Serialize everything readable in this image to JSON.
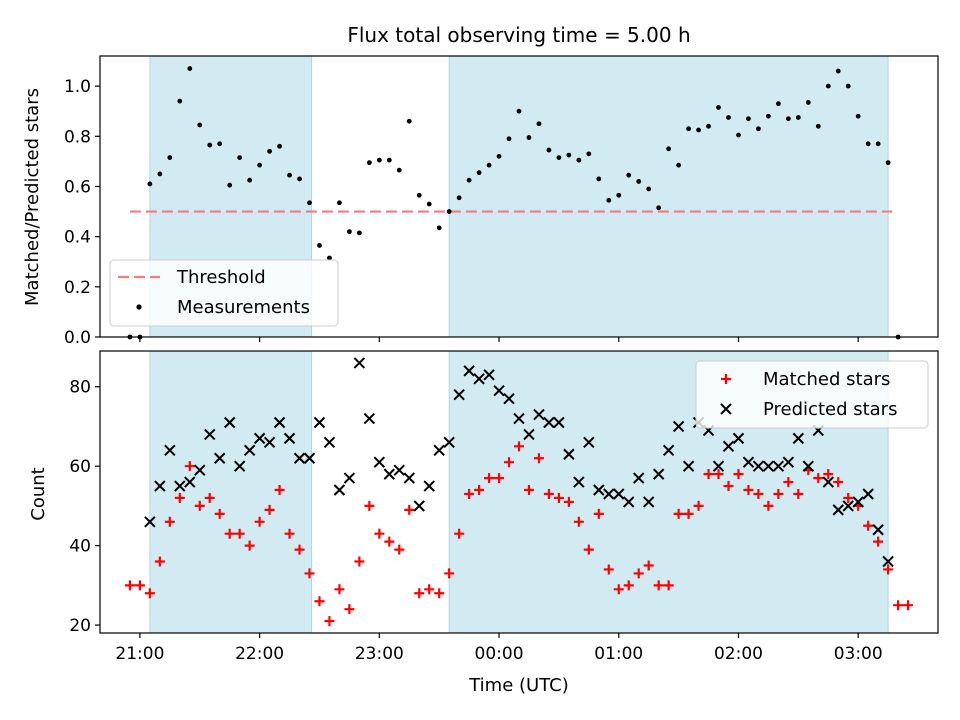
{
  "chart_data": [
    {
      "type": "scatter",
      "title": "Flux total observing time = 5.00 h",
      "xlabel": "",
      "ylabel": "Matched/Predicted stars",
      "ylim": [
        0,
        1.12
      ],
      "yticks": [
        "0.0",
        "0.2",
        "0.4",
        "0.6",
        "0.8",
        "1.0"
      ],
      "legend": {
        "position": "lower-left",
        "entries": [
          "Threshold",
          "Measurements"
        ]
      },
      "threshold": {
        "name": "Threshold",
        "value": 0.5,
        "color": "#f47c7c",
        "x_range": [
          "20:55",
          "03:17"
        ]
      },
      "shaded_periods": [
        [
          "21:05",
          "22:26"
        ],
        [
          "23:35",
          "03:15"
        ]
      ],
      "shade_color": "#add8e6",
      "series": [
        {
          "name": "Measurements",
          "color": "#000000",
          "points": [
            [
              "20:55",
              0.0
            ],
            [
              "21:00",
              0.0
            ],
            [
              "21:05",
              0.61
            ],
            [
              "21:10",
              0.65
            ],
            [
              "21:15",
              0.715
            ],
            [
              "21:20",
              0.94
            ],
            [
              "21:25",
              1.07
            ],
            [
              "21:30",
              0.845
            ],
            [
              "21:35",
              0.765
            ],
            [
              "21:40",
              0.77
            ],
            [
              "21:45",
              0.605
            ],
            [
              "21:50",
              0.715
            ],
            [
              "21:55",
              0.625
            ],
            [
              "22:00",
              0.685
            ],
            [
              "22:05",
              0.74
            ],
            [
              "22:10",
              0.76
            ],
            [
              "22:15",
              0.645
            ],
            [
              "22:20",
              0.63
            ],
            [
              "22:25",
              0.535
            ],
            [
              "22:30",
              0.365
            ],
            [
              "22:35",
              0.315
            ],
            [
              "22:40",
              0.535
            ],
            [
              "22:45",
              0.42
            ],
            [
              "22:50",
              0.415
            ],
            [
              "22:55",
              0.695
            ],
            [
              "23:00",
              0.705
            ],
            [
              "23:05",
              0.705
            ],
            [
              "23:10",
              0.665
            ],
            [
              "23:15",
              0.86
            ],
            [
              "23:20",
              0.565
            ],
            [
              "23:25",
              0.53
            ],
            [
              "23:30",
              0.435
            ],
            [
              "23:35",
              0.5
            ],
            [
              "23:40",
              0.555
            ],
            [
              "23:45",
              0.625
            ],
            [
              "23:50",
              0.655
            ],
            [
              "23:55",
              0.685
            ],
            [
              "00:00",
              0.72
            ],
            [
              "00:05",
              0.79
            ],
            [
              "00:10",
              0.9
            ],
            [
              "00:15",
              0.795
            ],
            [
              "00:20",
              0.85
            ],
            [
              "00:25",
              0.745
            ],
            [
              "00:30",
              0.715
            ],
            [
              "00:35",
              0.725
            ],
            [
              "00:40",
              0.705
            ],
            [
              "00:45",
              0.73
            ],
            [
              "00:50",
              0.63
            ],
            [
              "00:55",
              0.545
            ],
            [
              "01:00",
              0.565
            ],
            [
              "01:05",
              0.645
            ],
            [
              "01:10",
              0.62
            ],
            [
              "01:15",
              0.59
            ],
            [
              "01:20",
              0.515
            ],
            [
              "01:25",
              0.75
            ],
            [
              "01:30",
              0.685
            ],
            [
              "01:35",
              0.83
            ],
            [
              "01:40",
              0.825
            ],
            [
              "01:45",
              0.84
            ],
            [
              "01:50",
              0.915
            ],
            [
              "01:55",
              0.875
            ],
            [
              "02:00",
              0.805
            ],
            [
              "02:05",
              0.87
            ],
            [
              "02:10",
              0.83
            ],
            [
              "02:15",
              0.88
            ],
            [
              "02:20",
              0.93
            ],
            [
              "02:25",
              0.87
            ],
            [
              "02:30",
              0.875
            ],
            [
              "02:35",
              0.935
            ],
            [
              "02:40",
              0.84
            ],
            [
              "02:45",
              1.0
            ],
            [
              "02:50",
              1.06
            ],
            [
              "02:55",
              1.0
            ],
            [
              "03:00",
              0.88
            ],
            [
              "03:05",
              0.77
            ],
            [
              "03:10",
              0.77
            ],
            [
              "03:15",
              0.695
            ],
            [
              "03:20",
              0.0
            ]
          ]
        }
      ]
    },
    {
      "type": "scatter",
      "title": "",
      "xlabel": "Time (UTC)",
      "ylabel": "Count",
      "ylim": [
        18,
        89
      ],
      "yticks": [
        "20",
        "40",
        "60",
        "80"
      ],
      "xticks": [
        "21:00",
        "22:00",
        "23:00",
        "00:00",
        "01:00",
        "02:00",
        "03:00"
      ],
      "legend": {
        "position": "top-right",
        "entries": [
          "Matched stars",
          "Predicted stars"
        ]
      },
      "shaded_periods": [
        [
          "21:05",
          "22:26"
        ],
        [
          "23:35",
          "03:15"
        ]
      ],
      "shade_color": "#add8e6",
      "series": [
        {
          "name": "Matched stars",
          "marker": "plus",
          "color": "#ff0000",
          "points": [
            [
              "20:55",
              30
            ],
            [
              "21:00",
              30
            ],
            [
              "21:05",
              28
            ],
            [
              "21:10",
              36
            ],
            [
              "21:15",
              46
            ],
            [
              "21:20",
              52
            ],
            [
              "21:25",
              60
            ],
            [
              "21:30",
              50
            ],
            [
              "21:35",
              52
            ],
            [
              "21:40",
              48
            ],
            [
              "21:45",
              43
            ],
            [
              "21:50",
              43
            ],
            [
              "21:55",
              40
            ],
            [
              "22:00",
              46
            ],
            [
              "22:05",
              49
            ],
            [
              "22:10",
              54
            ],
            [
              "22:15",
              43
            ],
            [
              "22:20",
              39
            ],
            [
              "22:25",
              33
            ],
            [
              "22:30",
              26
            ],
            [
              "22:35",
              21
            ],
            [
              "22:40",
              29
            ],
            [
              "22:45",
              24
            ],
            [
              "22:50",
              36
            ],
            [
              "22:55",
              50
            ],
            [
              "23:00",
              43
            ],
            [
              "23:05",
              41
            ],
            [
              "23:10",
              39
            ],
            [
              "23:15",
              49
            ],
            [
              "23:20",
              28
            ],
            [
              "23:25",
              29
            ],
            [
              "23:30",
              28
            ],
            [
              "23:35",
              33
            ],
            [
              "23:40",
              43
            ],
            [
              "23:45",
              53
            ],
            [
              "23:50",
              54
            ],
            [
              "23:55",
              57
            ],
            [
              "00:00",
              57
            ],
            [
              "00:05",
              61
            ],
            [
              "00:10",
              65
            ],
            [
              "00:15",
              54
            ],
            [
              "00:20",
              62
            ],
            [
              "00:25",
              53
            ],
            [
              "00:30",
              52
            ],
            [
              "00:35",
              51
            ],
            [
              "00:40",
              46
            ],
            [
              "00:45",
              39
            ],
            [
              "00:50",
              48
            ],
            [
              "00:55",
              34
            ],
            [
              "01:00",
              29
            ],
            [
              "01:05",
              30
            ],
            [
              "01:10",
              33
            ],
            [
              "01:15",
              35
            ],
            [
              "01:20",
              30
            ],
            [
              "01:25",
              30
            ],
            [
              "01:30",
              48
            ],
            [
              "01:35",
              48
            ],
            [
              "01:40",
              50
            ],
            [
              "01:45",
              58
            ],
            [
              "01:50",
              58
            ],
            [
              "01:55",
              55
            ],
            [
              "02:00",
              58
            ],
            [
              "02:05",
              54
            ],
            [
              "02:10",
              53
            ],
            [
              "02:15",
              50
            ],
            [
              "02:20",
              53
            ],
            [
              "02:25",
              56
            ],
            [
              "02:30",
              53
            ],
            [
              "02:35",
              59
            ],
            [
              "02:40",
              57
            ],
            [
              "02:45",
              58
            ],
            [
              "02:50",
              56
            ],
            [
              "02:55",
              52
            ],
            [
              "03:00",
              50
            ],
            [
              "03:05",
              45
            ],
            [
              "03:10",
              41
            ],
            [
              "03:15",
              34
            ],
            [
              "03:20",
              25
            ],
            [
              "03:25",
              25
            ]
          ]
        },
        {
          "name": "Predicted stars",
          "marker": "x",
          "color": "#000000",
          "points": [
            [
              "21:05",
              46
            ],
            [
              "21:10",
              55
            ],
            [
              "21:15",
              64
            ],
            [
              "21:20",
              55
            ],
            [
              "21:25",
              56
            ],
            [
              "21:30",
              59
            ],
            [
              "21:35",
              68
            ],
            [
              "21:40",
              62
            ],
            [
              "21:45",
              71
            ],
            [
              "21:50",
              60
            ],
            [
              "21:55",
              64
            ],
            [
              "22:00",
              67
            ],
            [
              "22:05",
              66
            ],
            [
              "22:10",
              71
            ],
            [
              "22:15",
              67
            ],
            [
              "22:20",
              62
            ],
            [
              "22:25",
              62
            ],
            [
              "22:30",
              71
            ],
            [
              "22:35",
              66
            ],
            [
              "22:40",
              54
            ],
            [
              "22:45",
              57
            ],
            [
              "22:50",
              86
            ],
            [
              "22:55",
              72
            ],
            [
              "23:00",
              61
            ],
            [
              "23:05",
              58
            ],
            [
              "23:10",
              59
            ],
            [
              "23:15",
              57
            ],
            [
              "23:20",
              50
            ],
            [
              "23:25",
              55
            ],
            [
              "23:30",
              64
            ],
            [
              "23:35",
              66
            ],
            [
              "23:40",
              78
            ],
            [
              "23:45",
              84
            ],
            [
              "23:50",
              82
            ],
            [
              "23:55",
              83
            ],
            [
              "00:00",
              79
            ],
            [
              "00:05",
              77
            ],
            [
              "00:10",
              72
            ],
            [
              "00:15",
              68
            ],
            [
              "00:20",
              73
            ],
            [
              "00:25",
              71
            ],
            [
              "00:30",
              71
            ],
            [
              "00:35",
              63
            ],
            [
              "00:40",
              56
            ],
            [
              "00:45",
              66
            ],
            [
              "00:50",
              54
            ],
            [
              "00:55",
              53
            ],
            [
              "01:00",
              53
            ],
            [
              "01:05",
              51
            ],
            [
              "01:10",
              57
            ],
            [
              "01:15",
              51
            ],
            [
              "01:20",
              58
            ],
            [
              "01:25",
              64
            ],
            [
              "01:30",
              70
            ],
            [
              "01:35",
              60
            ],
            [
              "01:40",
              71
            ],
            [
              "01:45",
              69
            ],
            [
              "01:50",
              60
            ],
            [
              "01:55",
              65
            ],
            [
              "02:00",
              67
            ],
            [
              "02:05",
              61
            ],
            [
              "02:10",
              60
            ],
            [
              "02:15",
              60
            ],
            [
              "02:20",
              60
            ],
            [
              "02:25",
              61
            ],
            [
              "02:30",
              67
            ],
            [
              "02:35",
              60
            ],
            [
              "02:40",
              69
            ],
            [
              "02:45",
              56
            ],
            [
              "02:50",
              49
            ],
            [
              "02:55",
              50
            ],
            [
              "03:00",
              51
            ],
            [
              "03:05",
              53
            ],
            [
              "03:10",
              44
            ],
            [
              "03:15",
              36
            ]
          ]
        }
      ]
    }
  ]
}
